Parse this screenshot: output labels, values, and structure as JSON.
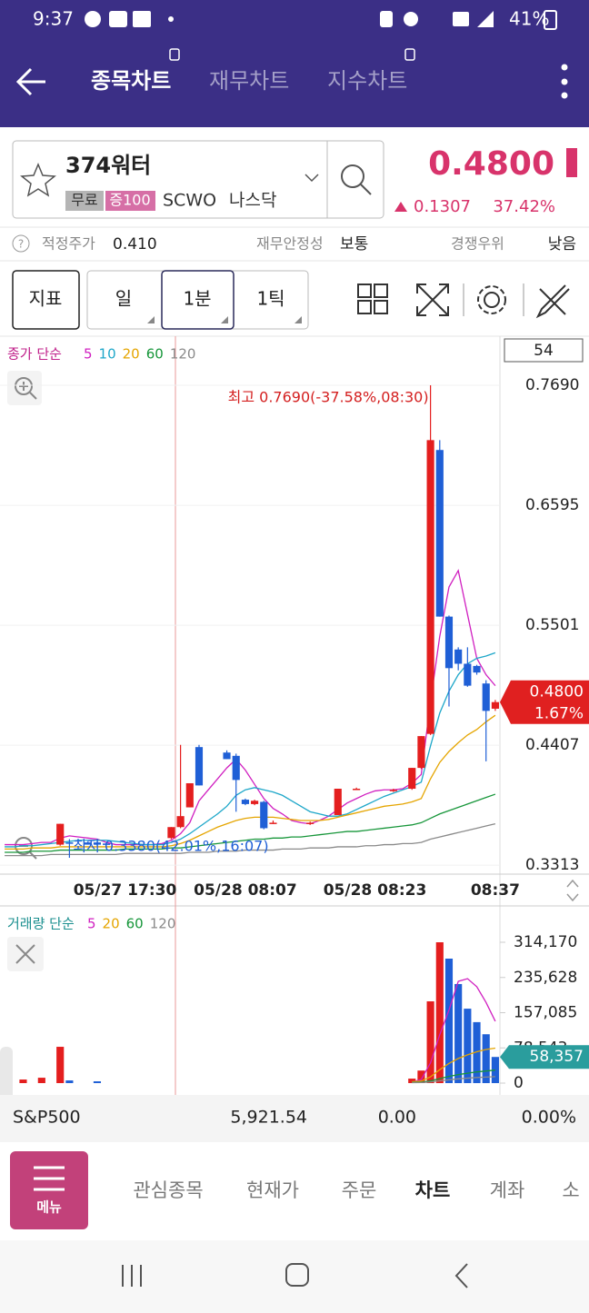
{
  "status_bar": {
    "time": "9:37",
    "battery": "41%"
  },
  "header": {
    "tabs": [
      "종목차트",
      "재무차트",
      "지수차트"
    ]
  },
  "stock": {
    "name": "374워터",
    "badges": [
      "무료",
      "증100"
    ],
    "ticker": "SCWO",
    "exchange": "나스닥",
    "price": "0.4800",
    "change": "0.1307",
    "change_rate": "37.42%"
  },
  "info": {
    "fair_price_label": "적정주가",
    "fair_price": "0.410",
    "stability_label": "재무안정성",
    "stability": "보통",
    "moat_label": "경쟁우위",
    "moat": "낮음"
  },
  "toolbar": {
    "buttons": [
      "지표",
      "일",
      "1분",
      "1틱"
    ]
  },
  "chart_data": [
    {
      "type": "candlestick",
      "legend_title": "종가 단순",
      "count_label": "54",
      "categories": [
        null,
        null,
        null,
        null,
        null,
        null,
        null,
        null,
        null,
        null,
        null,
        null,
        null,
        "05/27 17:30",
        null,
        null,
        null,
        null,
        null,
        null,
        null,
        null,
        null,
        null,
        null,
        null,
        "05/28 08:07",
        null,
        null,
        null,
        null,
        null,
        null,
        null,
        null,
        null,
        null,
        null,
        null,
        null,
        "05/28 08:23",
        null,
        null,
        null,
        null,
        null,
        null,
        null,
        null,
        null,
        null,
        null,
        null,
        "08:37"
      ],
      "open": [
        null,
        null,
        null,
        null,
        null,
        null,
        0.35,
        0.352,
        null,
        0.352,
        0.352,
        0.351,
        null,
        null,
        null,
        null,
        null,
        null,
        0.356,
        0.366,
        0.384,
        0.439,
        null,
        null,
        0.434,
        0.431,
        0.391,
        0.387,
        0.389,
        0.37,
        null,
        null,
        null,
        0.369,
        null,
        null,
        0.377,
        null,
        0.401,
        null,
        null,
        null,
        0.399,
        null,
        0.401,
        0.42,
        0.451,
        0.71,
        0.558,
        0.528,
        0.515,
        0.513,
        0.497,
        0.474
      ],
      "high": [
        null,
        null,
        null,
        null,
        null,
        null,
        0.369,
        0.355,
        null,
        0.353,
        0.353,
        0.352,
        null,
        null,
        null,
        null,
        null,
        null,
        0.366,
        0.441,
        0.406,
        0.441,
        null,
        null,
        0.436,
        0.433,
        0.392,
        0.391,
        0.39,
        0.372,
        null,
        null,
        null,
        0.371,
        null,
        null,
        0.401,
        null,
        0.402,
        null,
        null,
        null,
        0.401,
        null,
        0.42,
        0.449,
        0.769,
        0.719,
        0.559,
        0.53,
        0.53,
        0.514,
        0.5,
        0.482
      ],
      "low": [
        null,
        null,
        null,
        null,
        null,
        null,
        0.349,
        0.338,
        null,
        0.35,
        0.349,
        0.35,
        null,
        null,
        null,
        null,
        null,
        null,
        0.355,
        0.365,
        0.384,
        0.404,
        null,
        null,
        0.428,
        0.38,
        0.386,
        0.386,
        0.364,
        0.369,
        null,
        null,
        null,
        0.368,
        null,
        null,
        0.377,
        null,
        0.4,
        null,
        null,
        null,
        0.398,
        null,
        0.4,
        0.419,
        0.45,
        0.558,
        0.476,
        0.509,
        0.494,
        0.505,
        0.426,
        0.472
      ],
      "close": [
        null,
        null,
        null,
        null,
        null,
        null,
        0.369,
        0.351,
        null,
        0.35,
        0.35,
        0.35,
        null,
        null,
        null,
        null,
        null,
        null,
        0.366,
        0.376,
        0.406,
        0.404,
        null,
        null,
        0.428,
        0.409,
        0.387,
        0.39,
        0.365,
        0.37,
        null,
        null,
        null,
        0.37,
        null,
        null,
        0.401,
        null,
        0.401,
        null,
        null,
        null,
        0.4,
        null,
        0.42,
        0.449,
        0.719,
        0.558,
        0.511,
        0.515,
        0.495,
        0.507,
        0.472,
        0.48
      ],
      "up_color": "#e41e1e",
      "down_color": "#1f5fd6",
      "series": [
        {
          "name": "5",
          "color": "#d01fc0",
          "values": [
            0.35,
            0.35,
            0.35,
            0.351,
            0.352,
            0.352,
            0.356,
            0.358,
            0.357,
            0.356,
            0.355,
            0.352,
            0.35,
            0.35,
            0.35,
            0.35,
            0.35,
            0.351,
            0.354,
            0.36,
            0.37,
            0.39,
            0.4,
            0.41,
            0.42,
            0.428,
            0.418,
            0.405,
            0.392,
            0.383,
            0.378,
            0.372,
            0.37,
            0.369,
            0.372,
            0.376,
            0.382,
            0.388,
            0.392,
            0.396,
            0.399,
            0.4,
            0.4,
            0.401,
            0.406,
            0.414,
            0.48,
            0.54,
            0.585,
            0.6,
            0.56,
            0.52,
            0.505,
            0.495
          ]
        },
        {
          "name": "10",
          "color": "#1ea7c9",
          "values": [
            0.348,
            0.348,
            0.349,
            0.349,
            0.35,
            0.351,
            0.352,
            0.353,
            0.354,
            0.354,
            0.354,
            0.354,
            0.353,
            0.352,
            0.351,
            0.35,
            0.35,
            0.35,
            0.352,
            0.355,
            0.36,
            0.366,
            0.372,
            0.378,
            0.385,
            0.395,
            0.4,
            0.402,
            0.4,
            0.398,
            0.395,
            0.39,
            0.385,
            0.38,
            0.378,
            0.376,
            0.376,
            0.378,
            0.382,
            0.386,
            0.39,
            0.394,
            0.397,
            0.4,
            0.403,
            0.407,
            0.44,
            0.47,
            0.49,
            0.505,
            0.515,
            0.52,
            0.522,
            0.525
          ]
        },
        {
          "name": "20",
          "color": "#e5a500",
          "values": [
            0.346,
            0.346,
            0.346,
            0.347,
            0.347,
            0.347,
            0.348,
            0.348,
            0.348,
            0.348,
            0.348,
            0.348,
            0.348,
            0.348,
            0.348,
            0.348,
            0.348,
            0.348,
            0.349,
            0.351,
            0.354,
            0.358,
            0.362,
            0.366,
            0.369,
            0.372,
            0.374,
            0.375,
            0.375,
            0.375,
            0.374,
            0.373,
            0.372,
            0.372,
            0.372,
            0.373,
            0.375,
            0.377,
            0.379,
            0.381,
            0.383,
            0.385,
            0.386,
            0.387,
            0.389,
            0.392,
            0.41,
            0.425,
            0.435,
            0.443,
            0.45,
            0.455,
            0.462,
            0.468
          ]
        },
        {
          "name": "60",
          "color": "#17963a",
          "values": [
            0.343,
            0.343,
            0.343,
            0.344,
            0.344,
            0.344,
            0.345,
            0.345,
            0.345,
            0.345,
            0.345,
            0.345,
            0.345,
            0.346,
            0.346,
            0.346,
            0.346,
            0.346,
            0.347,
            0.347,
            0.348,
            0.349,
            0.35,
            0.351,
            0.352,
            0.353,
            0.354,
            0.355,
            0.355,
            0.356,
            0.356,
            0.357,
            0.357,
            0.358,
            0.359,
            0.36,
            0.361,
            0.362,
            0.362,
            0.363,
            0.364,
            0.365,
            0.366,
            0.367,
            0.368,
            0.37,
            0.374,
            0.378,
            0.381,
            0.384,
            0.387,
            0.39,
            0.393,
            0.396
          ]
        },
        {
          "name": "120",
          "color": "#8a8a8a",
          "values": [
            0.34,
            0.34,
            0.34,
            0.34,
            0.34,
            0.341,
            0.341,
            0.341,
            0.341,
            0.341,
            0.341,
            0.341,
            0.341,
            0.342,
            0.342,
            0.342,
            0.342,
            0.342,
            0.342,
            0.342,
            0.343,
            0.343,
            0.343,
            0.344,
            0.344,
            0.344,
            0.345,
            0.345,
            0.345,
            0.345,
            0.346,
            0.346,
            0.346,
            0.347,
            0.347,
            0.347,
            0.348,
            0.348,
            0.348,
            0.349,
            0.349,
            0.35,
            0.35,
            0.351,
            0.351,
            0.352,
            0.355,
            0.357,
            0.359,
            0.361,
            0.363,
            0.365,
            0.367,
            0.369
          ]
        }
      ],
      "high_annotation": "최고 0.7690(-37.58%,08:30)",
      "low_annotation": "최저 0.3380(42.01%,16:07)",
      "last_price_label": "0.4800",
      "last_change_label": "1.67%",
      "ylim": [
        0.3231,
        0.8138
      ],
      "yticks": [
        {
          "value": 0.769,
          "label": "0.7690"
        },
        {
          "value": 0.6595,
          "label": "0.6595"
        },
        {
          "value": 0.5501,
          "label": "0.5501"
        },
        {
          "value": 0.4407,
          "label": "0.4407"
        },
        {
          "value": 0.3313,
          "label": "0.3313"
        }
      ],
      "grid": true
    },
    {
      "type": "bar",
      "legend_title": "거래량 단순",
      "values": [
        null,
        null,
        8000,
        null,
        12000,
        null,
        81000,
        6000,
        null,
        null,
        4000,
        null,
        null,
        null,
        null,
        null,
        null,
        null,
        null,
        null,
        null,
        null,
        null,
        null,
        null,
        null,
        null,
        null,
        null,
        null,
        null,
        null,
        null,
        null,
        null,
        null,
        null,
        null,
        null,
        null,
        null,
        null,
        null,
        null,
        10000,
        28000,
        182400,
        314170,
        277700,
        221000,
        166000,
        136000,
        109000,
        58357
      ],
      "colors": [
        null,
        null,
        "#e41e1e",
        null,
        "#e41e1e",
        null,
        "#e41e1e",
        "#1f5fd6",
        null,
        null,
        "#1f5fd6",
        null,
        null,
        null,
        null,
        null,
        null,
        null,
        null,
        null,
        null,
        null,
        null,
        null,
        null,
        null,
        null,
        null,
        null,
        null,
        null,
        null,
        null,
        null,
        null,
        null,
        null,
        null,
        null,
        null,
        null,
        null,
        null,
        null,
        "#e41e1e",
        "#e41e1e",
        "#e41e1e",
        "#e41e1e",
        "#1f5fd6",
        "#1f5fd6",
        "#1f5fd6",
        "#1f5fd6",
        "#1f5fd6",
        "#1f5fd6"
      ],
      "series": [
        {
          "name": "5",
          "color": "#d01fc0",
          "values": [
            null,
            null,
            null,
            null,
            null,
            null,
            null,
            null,
            null,
            null,
            null,
            null,
            null,
            null,
            null,
            null,
            null,
            null,
            null,
            null,
            null,
            null,
            null,
            null,
            null,
            null,
            null,
            null,
            null,
            null,
            null,
            null,
            null,
            null,
            null,
            null,
            null,
            null,
            null,
            null,
            null,
            null,
            null,
            null,
            2000,
            8000,
            45000,
            108000,
            163000,
            227000,
            233000,
            215000,
            180000,
            138000
          ]
        },
        {
          "name": "20",
          "color": "#e5a500",
          "values": [
            null,
            null,
            null,
            null,
            null,
            null,
            null,
            null,
            null,
            null,
            null,
            null,
            null,
            null,
            null,
            null,
            null,
            null,
            null,
            null,
            null,
            null,
            null,
            null,
            null,
            null,
            null,
            null,
            null,
            null,
            null,
            null,
            null,
            null,
            null,
            null,
            null,
            null,
            null,
            null,
            null,
            null,
            null,
            null,
            3000,
            4500,
            14000,
            30000,
            44000,
            55000,
            63000,
            70000,
            75000,
            78000
          ]
        },
        {
          "name": "60",
          "color": "#17963a",
          "values": [
            null,
            null,
            null,
            null,
            null,
            null,
            null,
            null,
            null,
            null,
            null,
            null,
            null,
            null,
            null,
            null,
            null,
            null,
            null,
            null,
            null,
            null,
            null,
            null,
            null,
            null,
            null,
            null,
            null,
            null,
            null,
            null,
            null,
            null,
            null,
            null,
            null,
            null,
            null,
            null,
            null,
            null,
            null,
            null,
            1500,
            2000,
            5000,
            10000,
            15000,
            19000,
            22000,
            25000,
            27000,
            29000
          ]
        },
        {
          "name": "120",
          "color": "#8a8a8a",
          "values": [
            null,
            null,
            null,
            null,
            null,
            null,
            null,
            null,
            null,
            null,
            null,
            null,
            null,
            null,
            null,
            null,
            null,
            null,
            null,
            null,
            null,
            null,
            null,
            null,
            null,
            null,
            null,
            null,
            null,
            null,
            null,
            null,
            null,
            null,
            null,
            null,
            null,
            null,
            null,
            null,
            null,
            null,
            null,
            null,
            1000,
            1200,
            2500,
            5000,
            7500,
            9500,
            11000,
            12500,
            13500,
            14500
          ]
        }
      ],
      "last_label": "58,357",
      "ylim": [
        -26350,
        368900
      ],
      "yticks": [
        {
          "value": 314170,
          "label": "314,170"
        },
        {
          "value": 235628,
          "label": "235,628"
        },
        {
          "value": 157085,
          "label": "157,085"
        },
        {
          "value": 78543,
          "label": "78,543"
        },
        0
      ]
    }
  ],
  "ticker_bar": {
    "name": "S&P500",
    "value": "5,921.54",
    "change": "0.00",
    "change_rate": "0.00%"
  },
  "bottom_nav": {
    "menu": "메뉴",
    "items": [
      "관심종목",
      "현재가",
      "주문",
      "차트",
      "계좌",
      "소"
    ]
  }
}
